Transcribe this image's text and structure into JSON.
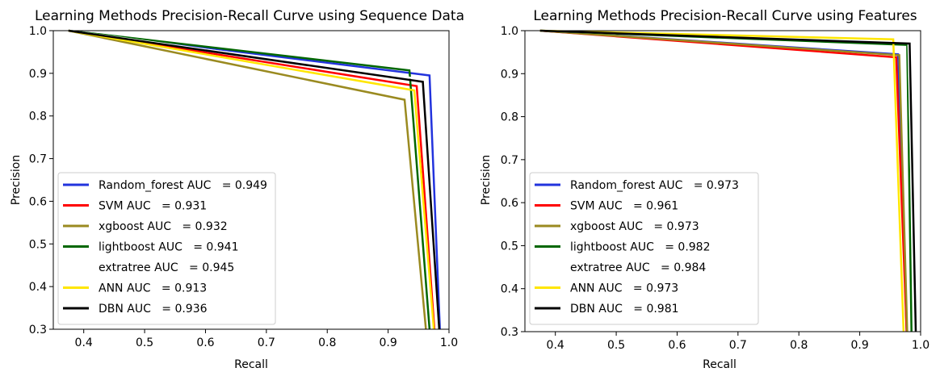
{
  "chart_data": [
    {
      "type": "line",
      "title": "Learning Methods Precision-Recall Curve using Sequence Data",
      "xlabel": "Recall",
      "ylabel": "Precision",
      "xlim": [
        0.35,
        1.0
      ],
      "ylim": [
        0.3,
        1.0
      ],
      "xticks": [
        "0.4",
        "0.5",
        "0.6",
        "0.7",
        "0.8",
        "0.9",
        "1.0"
      ],
      "yticks": [
        "0.3",
        "0.4",
        "0.5",
        "0.6",
        "0.7",
        "0.8",
        "0.9",
        "1.0"
      ],
      "grid": false,
      "legend_position": "lower left",
      "series": [
        {
          "name": "Random_forest AUC   = 0.949",
          "color": "#2233dd",
          "x": [
            0.375,
            0.968,
            0.985
          ],
          "y": [
            1.0,
            0.895,
            0.3
          ]
        },
        {
          "name": "SVM AUC   = 0.931",
          "color": "#ff0000",
          "x": [
            0.375,
            0.947,
            0.976
          ],
          "y": [
            1.0,
            0.87,
            0.3
          ]
        },
        {
          "name": "xgboost AUC   = 0.932",
          "color": "#9a8a20",
          "x": [
            0.375,
            0.927,
            0.962
          ],
          "y": [
            1.0,
            0.838,
            0.3
          ]
        },
        {
          "name": "lightboost AUC   = 0.941",
          "color": "#006600",
          "x": [
            0.375,
            0.935,
            0.968
          ],
          "y": [
            1.0,
            0.907,
            0.3
          ]
        },
        {
          "name": "extratree AUC   = 0.945",
          "color": "#ffffff",
          "x": [
            0.375,
            0.96,
            0.982
          ],
          "y": [
            1.0,
            0.885,
            0.3
          ]
        },
        {
          "name": "ANN AUC   = 0.913",
          "color": "#ffe600",
          "x": [
            0.375,
            0.943,
            0.975
          ],
          "y": [
            1.0,
            0.86,
            0.3
          ]
        },
        {
          "name": "DBN AUC   = 0.936",
          "color": "#000000",
          "x": [
            0.375,
            0.957,
            0.984
          ],
          "y": [
            1.0,
            0.88,
            0.3
          ]
        }
      ]
    },
    {
      "type": "line",
      "title": "Learning Methods Precision-Recall Curve using Features",
      "xlabel": "Recall",
      "ylabel": "Precision",
      "xlim": [
        0.35,
        1.0
      ],
      "ylim": [
        0.3,
        1.0
      ],
      "xticks": [
        "0.4",
        "0.5",
        "0.6",
        "0.7",
        "0.8",
        "0.9",
        "1.0"
      ],
      "yticks": [
        "0.3",
        "0.4",
        "0.5",
        "0.6",
        "0.7",
        "0.8",
        "0.9",
        "1.0"
      ],
      "grid": false,
      "legend_position": "lower left",
      "series": [
        {
          "name": "Random_forest AUC   = 0.973",
          "color": "#2233dd",
          "x": [
            0.375,
            0.963,
            0.977
          ],
          "y": [
            1.0,
            0.945,
            0.3
          ]
        },
        {
          "name": "SVM AUC   = 0.961",
          "color": "#ff0000",
          "x": [
            0.375,
            0.96,
            0.977
          ],
          "y": [
            1.0,
            0.938,
            0.3
          ]
        },
        {
          "name": "xgboost AUC   = 0.973",
          "color": "#9a8a20",
          "x": [
            0.375,
            0.965,
            0.978
          ],
          "y": [
            1.0,
            0.943,
            0.3
          ]
        },
        {
          "name": "lightboost AUC   = 0.982",
          "color": "#006600",
          "x": [
            0.375,
            0.978,
            0.985
          ],
          "y": [
            1.0,
            0.967,
            0.3
          ]
        },
        {
          "name": "extratree AUC   = 0.984",
          "color": "#ffffff",
          "x": [
            0.375,
            0.98,
            0.99
          ],
          "y": [
            1.0,
            0.972,
            0.3
          ]
        },
        {
          "name": "ANN AUC   = 0.973",
          "color": "#ffe600",
          "x": [
            0.375,
            0.955,
            0.972
          ],
          "y": [
            1.0,
            0.98,
            0.3
          ]
        },
        {
          "name": "DBN AUC   = 0.981",
          "color": "#000000",
          "x": [
            0.375,
            0.982,
            0.992
          ],
          "y": [
            1.0,
            0.97,
            0.3
          ]
        }
      ]
    }
  ]
}
